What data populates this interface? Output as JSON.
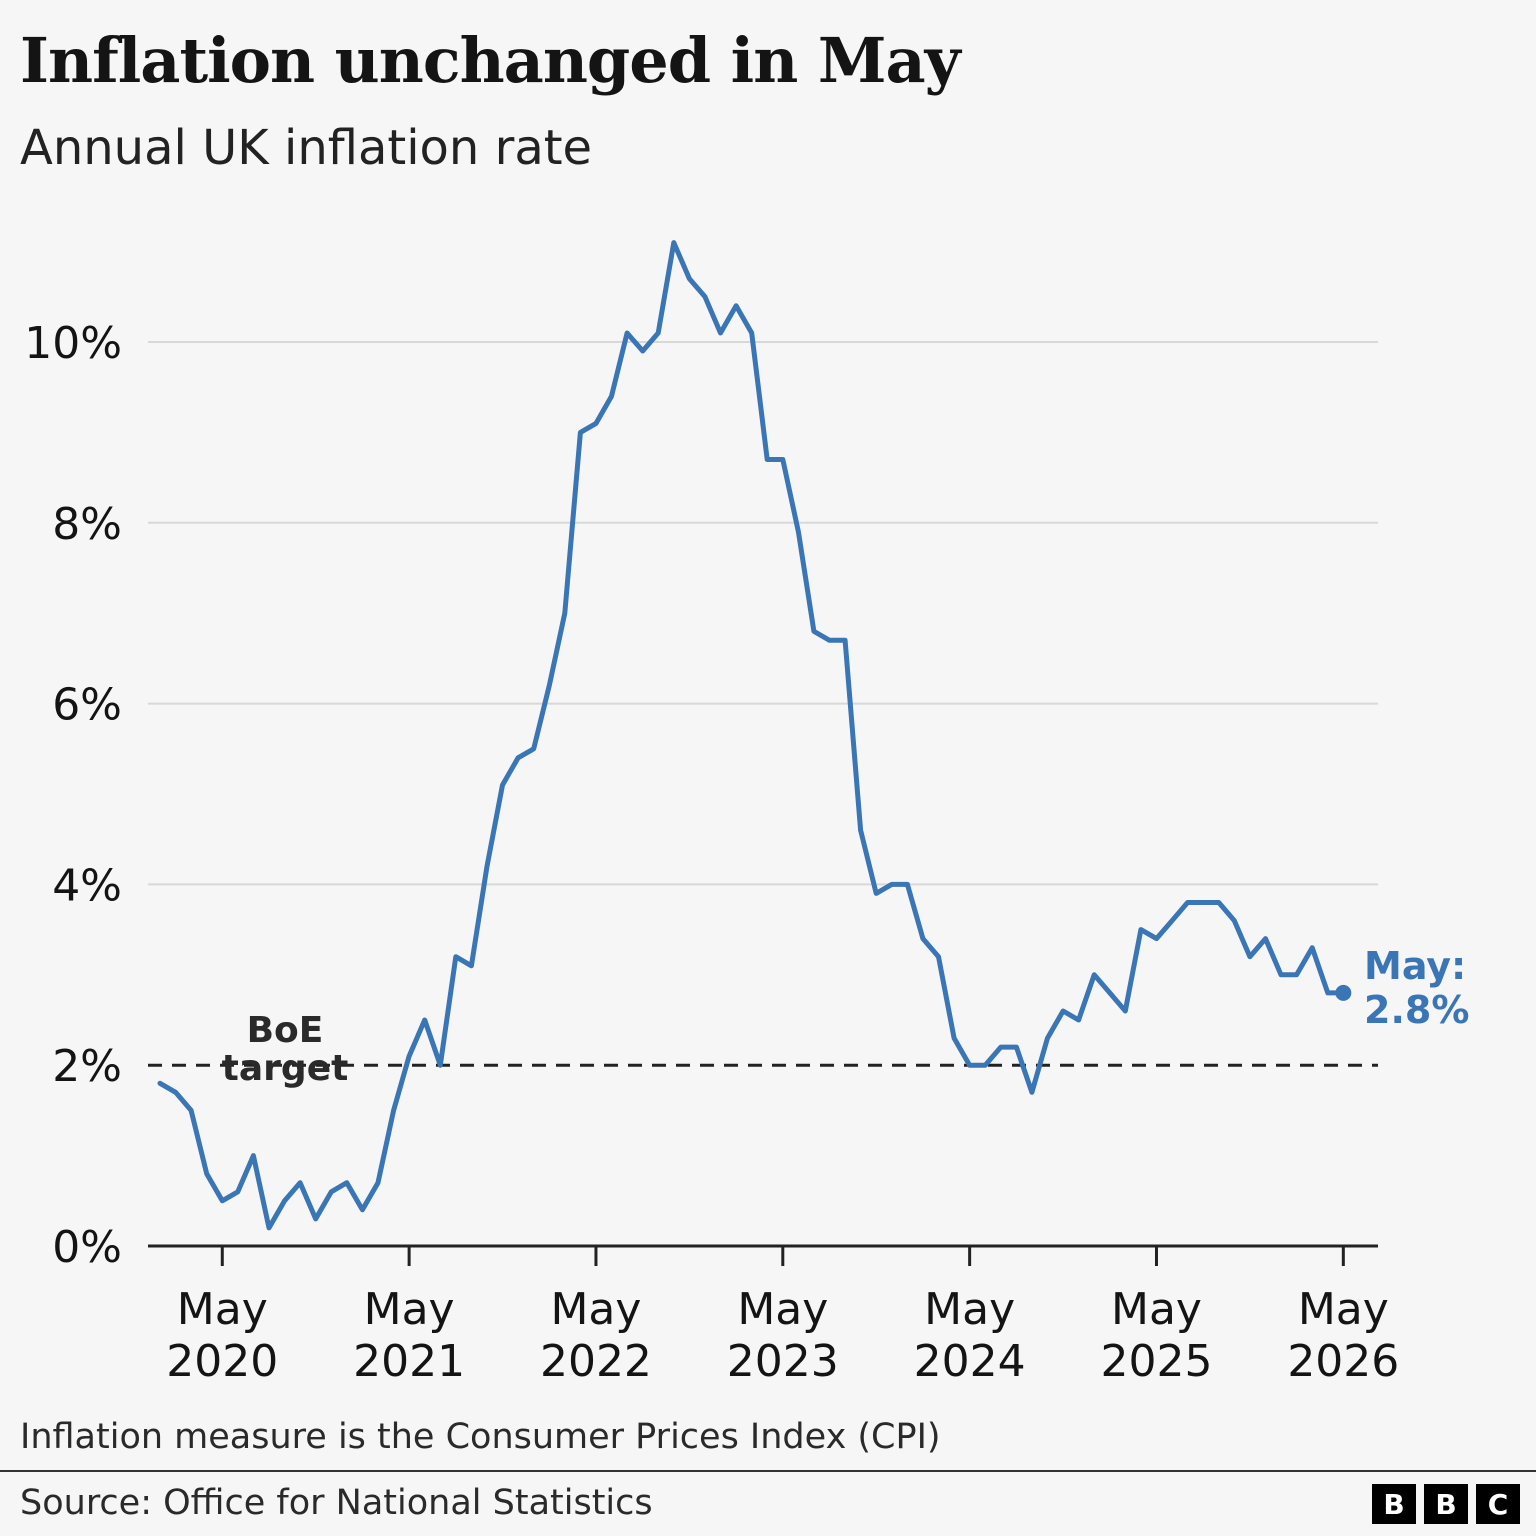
{
  "title": "Inflation unchanged in May",
  "subtitle": "Annual UK inflation rate",
  "footnote": "Inflation measure is the Consumer Prices Index (CPI)",
  "source": "Source: Office for National Statistics",
  "logo": [
    "B",
    "B",
    "C"
  ],
  "colors": {
    "line": "#3a75b5",
    "grid": "#d8d8d8",
    "target": "#222222",
    "axis": "#222222"
  },
  "chart_data": {
    "type": "line",
    "x_start": "2020-01",
    "x_frequency": "monthly",
    "y_unit": "%",
    "ylim": [
      0,
      11.5
    ],
    "grid": true,
    "y_ticks": [
      {
        "value": 0,
        "label": "0%"
      },
      {
        "value": 2,
        "label": "2%"
      },
      {
        "value": 4,
        "label": "4%"
      },
      {
        "value": 6,
        "label": "6%"
      },
      {
        "value": 8,
        "label": "8%"
      },
      {
        "value": 10,
        "label": "10%"
      }
    ],
    "x_ticks": [
      {
        "date": "2020-05",
        "label": [
          "May",
          "2020"
        ]
      },
      {
        "date": "2021-05",
        "label": [
          "May",
          "2021"
        ]
      },
      {
        "date": "2022-05",
        "label": [
          "May",
          "2022"
        ]
      },
      {
        "date": "2023-05",
        "label": [
          "May",
          "2023"
        ]
      },
      {
        "date": "2024-05",
        "label": [
          "May",
          "2024"
        ]
      },
      {
        "date": "2025-05",
        "label": [
          "May",
          "2025"
        ]
      },
      {
        "date": "2026-05",
        "label": [
          "May",
          "2026"
        ]
      }
    ],
    "series": [
      {
        "values": [
          1.8,
          1.7,
          1.5,
          0.8,
          0.5,
          0.6,
          1.0,
          0.2,
          0.5,
          0.7,
          0.3,
          0.6,
          0.7,
          0.4,
          0.7,
          1.5,
          2.1,
          2.5,
          2.0,
          3.2,
          3.1,
          4.2,
          5.1,
          5.4,
          5.5,
          6.2,
          7.0,
          9.0,
          9.1,
          9.4,
          10.1,
          9.9,
          10.1,
          11.1,
          10.7,
          10.5,
          10.1,
          10.4,
          10.1,
          8.7,
          8.7,
          7.9,
          6.8,
          6.7,
          6.7,
          4.6,
          3.9,
          4.0,
          4.0,
          3.4,
          3.2,
          2.3,
          2.0,
          2.0,
          2.2,
          2.2,
          1.7,
          2.3,
          2.6,
          2.5,
          3.0,
          2.8,
          2.6,
          3.5,
          3.4,
          3.6,
          3.8,
          3.8,
          3.8,
          3.6,
          3.2,
          3.4,
          3.0,
          3.0,
          3.3,
          2.8,
          2.8
        ]
      }
    ],
    "reference_line": {
      "value": 2,
      "label": [
        "BoE",
        "target"
      ]
    },
    "end_annotation": {
      "label": [
        "May:",
        "2.8%"
      ],
      "value": 2.8
    }
  }
}
